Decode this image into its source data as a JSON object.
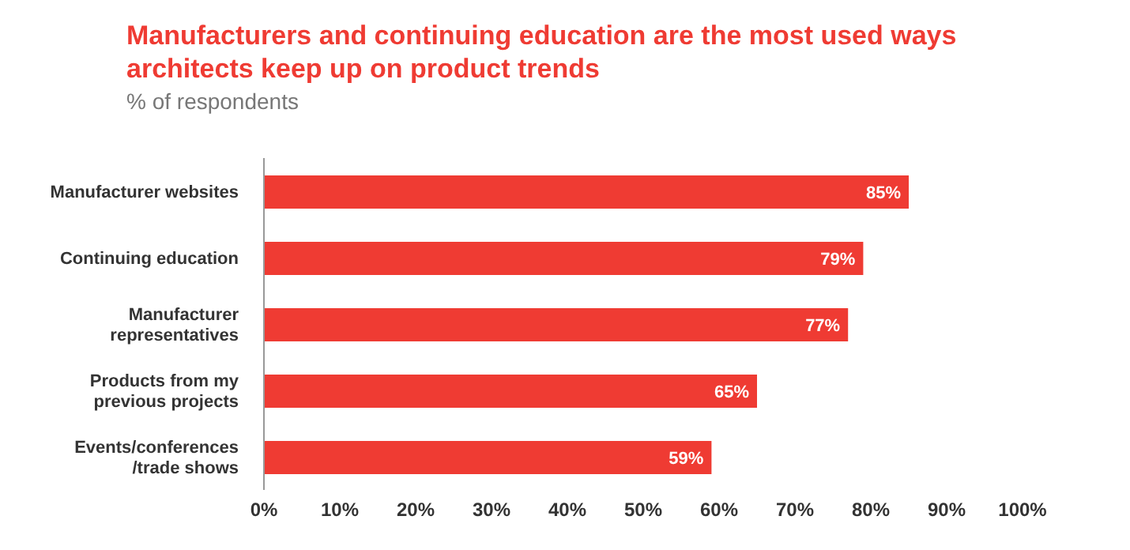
{
  "chart_data": {
    "type": "bar",
    "orientation": "horizontal",
    "title": "Manufacturers and continuing education are the most used ways architects keep up on product trends",
    "subtitle": "% of respondents",
    "categories": [
      "Manufacturer websites",
      "Continuing education",
      "Manufacturer representatives",
      "Products from my previous projects",
      "Events/conferences /trade shows"
    ],
    "values": [
      85,
      79,
      77,
      65,
      59
    ],
    "value_labels": [
      "85%",
      "79%",
      "77%",
      "65%",
      "59%"
    ],
    "color": "#ef3b33",
    "xlim": [
      0,
      100
    ],
    "xticks": [
      {
        "value": 0,
        "label": "0%"
      },
      {
        "value": 10,
        "label": "10%"
      },
      {
        "value": 20,
        "label": "20%"
      },
      {
        "value": 30,
        "label": "30%"
      },
      {
        "value": 40,
        "label": "40%"
      },
      {
        "value": 50,
        "label": "50%"
      },
      {
        "value": 60,
        "label": "60%"
      },
      {
        "value": 70,
        "label": "70%"
      },
      {
        "value": 80,
        "label": "80%"
      },
      {
        "value": 90,
        "label": "90%"
      },
      {
        "value": 100,
        "label": "100%"
      }
    ],
    "grid": false,
    "legend": false
  }
}
